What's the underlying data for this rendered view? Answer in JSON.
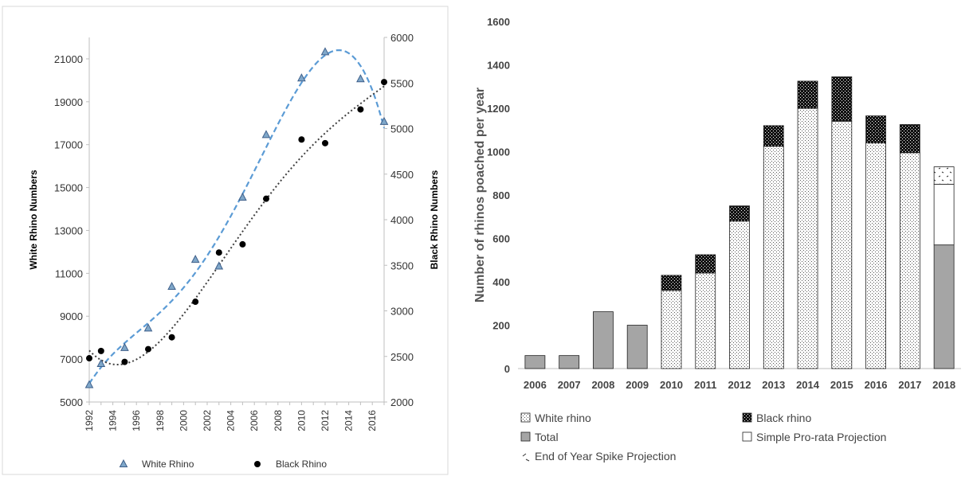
{
  "chart_data": [
    {
      "type": "scatter",
      "title": "",
      "xlabel": "",
      "ylabel": "White Rhino Numbers",
      "ylabel_right": "Black Rhino Numbers",
      "xlim": [
        1992,
        2017
      ],
      "ylim": [
        5000,
        22000
      ],
      "ylim_right": [
        2000,
        6000
      ],
      "x_ticks": [
        1992,
        1994,
        1996,
        1998,
        2000,
        2002,
        2004,
        2006,
        2008,
        2010,
        2012,
        2014,
        2016
      ],
      "y_ticks": [
        5000,
        7000,
        9000,
        11000,
        13000,
        15000,
        17000,
        19000,
        21000
      ],
      "y_ticks_right": [
        2000,
        2500,
        3000,
        3500,
        4000,
        4500,
        5000,
        5500,
        6000
      ],
      "grid": false,
      "legend_position": "bottom",
      "series": [
        {
          "name": "White Rhino",
          "axis": "left",
          "marker": "triangle",
          "color": "#3e5f8a",
          "trendline_color": "#5b9bd5",
          "x": [
            1992,
            1993,
            1995,
            1997,
            1999,
            2001,
            2003,
            2005,
            2007,
            2010,
            2012,
            2015,
            2017
          ],
          "y": [
            5800,
            6780,
            7530,
            8440,
            10380,
            11640,
            11330,
            14540,
            17460,
            20100,
            21320,
            20060,
            18070
          ]
        },
        {
          "name": "Black Rhino",
          "axis": "right",
          "marker": "circle",
          "color": "#000000",
          "trendline_color": "#404040",
          "x": [
            1992,
            1993,
            1995,
            1997,
            1999,
            2001,
            2003,
            2005,
            2007,
            2010,
            2012,
            2015,
            2017
          ],
          "y": [
            2480,
            2560,
            2440,
            2580,
            2710,
            3100,
            3640,
            3730,
            4230,
            4880,
            4840,
            5210,
            5510
          ]
        }
      ]
    },
    {
      "type": "bar",
      "stacked": true,
      "title": "",
      "xlabel": "",
      "ylabel": "Number of rhinos poached per year",
      "ylim": [
        0,
        1600
      ],
      "y_ticks": [
        0,
        200,
        400,
        600,
        800,
        1000,
        1200,
        1400,
        1600
      ],
      "grid": false,
      "legend_position": "bottom",
      "categories": [
        "2006",
        "2007",
        "2008",
        "2009",
        "2010",
        "2011",
        "2012",
        "2013",
        "2014",
        "2015",
        "2016",
        "2017",
        "2018"
      ],
      "series": [
        {
          "name": "White rhino",
          "pattern": "dots",
          "values": [
            0,
            0,
            0,
            0,
            360,
            440,
            680,
            1025,
            1200,
            1140,
            1040,
            995,
            0
          ]
        },
        {
          "name": "Black rhino",
          "pattern": "checker",
          "values": [
            0,
            0,
            0,
            0,
            70,
            85,
            70,
            95,
            125,
            205,
            125,
            130,
            0
          ]
        },
        {
          "name": "Total",
          "pattern": "solid-gray",
          "values": [
            60,
            60,
            262,
            200,
            0,
            0,
            0,
            0,
            0,
            0,
            0,
            0,
            570
          ]
        },
        {
          "name": "Simple Pro-rata Projection",
          "pattern": "white",
          "values": [
            0,
            0,
            0,
            0,
            0,
            0,
            0,
            0,
            0,
            0,
            0,
            0,
            280
          ]
        },
        {
          "name": "End of Year Spike Projection",
          "pattern": "sparse-dots",
          "values": [
            0,
            0,
            0,
            0,
            0,
            0,
            0,
            0,
            0,
            0,
            0,
            0,
            80
          ]
        }
      ]
    }
  ]
}
